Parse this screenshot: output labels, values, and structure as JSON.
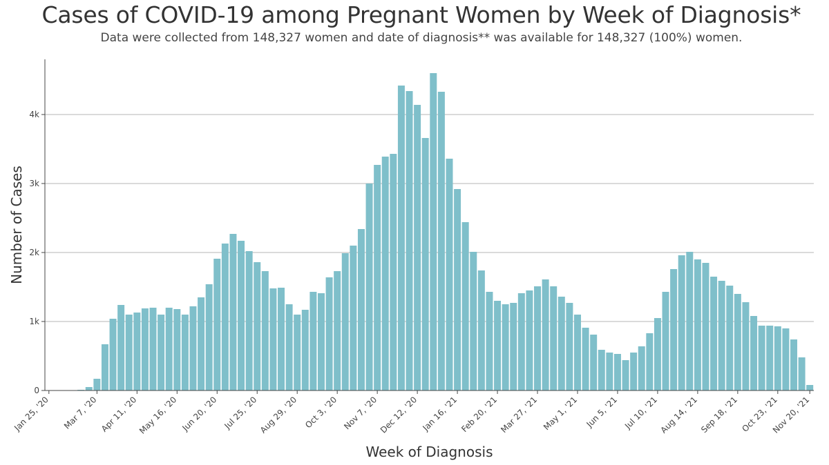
{
  "title": "Cases of COVID-19 among Pregnant Women by Week of Diagnosis*",
  "subtitle": "Data were collected from 148,327 women and date of diagnosis** was available for 148,327 (100%) women.",
  "colors": {
    "bar": "#7fbfca",
    "grid": "#b5b5b5",
    "axis": "#444444"
  },
  "chart_data": {
    "type": "bar",
    "title": "Cases of COVID-19 among Pregnant Women by Week of Diagnosis*",
    "xlabel": "Week of Diagnosis",
    "ylabel": "Number of Cases",
    "ylim": [
      0,
      4800
    ],
    "yticks": [
      {
        "value": 0,
        "label": "0"
      },
      {
        "value": 1000,
        "label": "1k"
      },
      {
        "value": 2000,
        "label": "2k"
      },
      {
        "value": 3000,
        "label": "3k"
      },
      {
        "value": 4000,
        "label": "4k"
      }
    ],
    "grid": true,
    "start_week": "Jan 25, '20",
    "xtick_labels": [
      "Jan 25, '20",
      "Mar 7, '20",
      "Apr 11, '20",
      "May 16, '20",
      "Jun 20, '20",
      "Jul 25, '20",
      "Aug 29, '20",
      "Oct 3, '20",
      "Nov 7, '20",
      "Dec 12, '20",
      "Jan 16, '21",
      "Feb 20, '21",
      "Mar 27, '21",
      "May 1, '21",
      "Jun 5, '21",
      "Jul 10, '21",
      "Aug 14, '21",
      "Sep 18, '21",
      "Oct 23, '21",
      "Nov 20, '21"
    ],
    "xtick_week_index": [
      0,
      6,
      11,
      16,
      21,
      26,
      31,
      36,
      41,
      46,
      51,
      56,
      61,
      66,
      71,
      76,
      81,
      86,
      91,
      95
    ],
    "values": [
      0,
      0,
      0,
      0,
      10,
      50,
      170,
      670,
      1040,
      1240,
      1100,
      1130,
      1190,
      1200,
      1100,
      1200,
      1180,
      1100,
      1220,
      1350,
      1540,
      1910,
      2130,
      2270,
      2170,
      2020,
      1860,
      1730,
      1480,
      1490,
      1250,
      1100,
      1170,
      1430,
      1410,
      1640,
      1730,
      1990,
      2100,
      2340,
      3000,
      3270,
      3390,
      3430,
      4420,
      4340,
      4140,
      3660,
      4600,
      4330,
      3360,
      2920,
      2440,
      2010,
      1740,
      1430,
      1300,
      1250,
      1270,
      1410,
      1450,
      1510,
      1610,
      1510,
      1360,
      1270,
      1100,
      910,
      810,
      590,
      550,
      530,
      440,
      550,
      640,
      830,
      1050,
      1430,
      1760,
      1960,
      2010,
      1900,
      1850,
      1650,
      1590,
      1520,
      1400,
      1280,
      1080,
      940,
      940,
      930,
      900,
      740,
      480,
      80
    ]
  }
}
